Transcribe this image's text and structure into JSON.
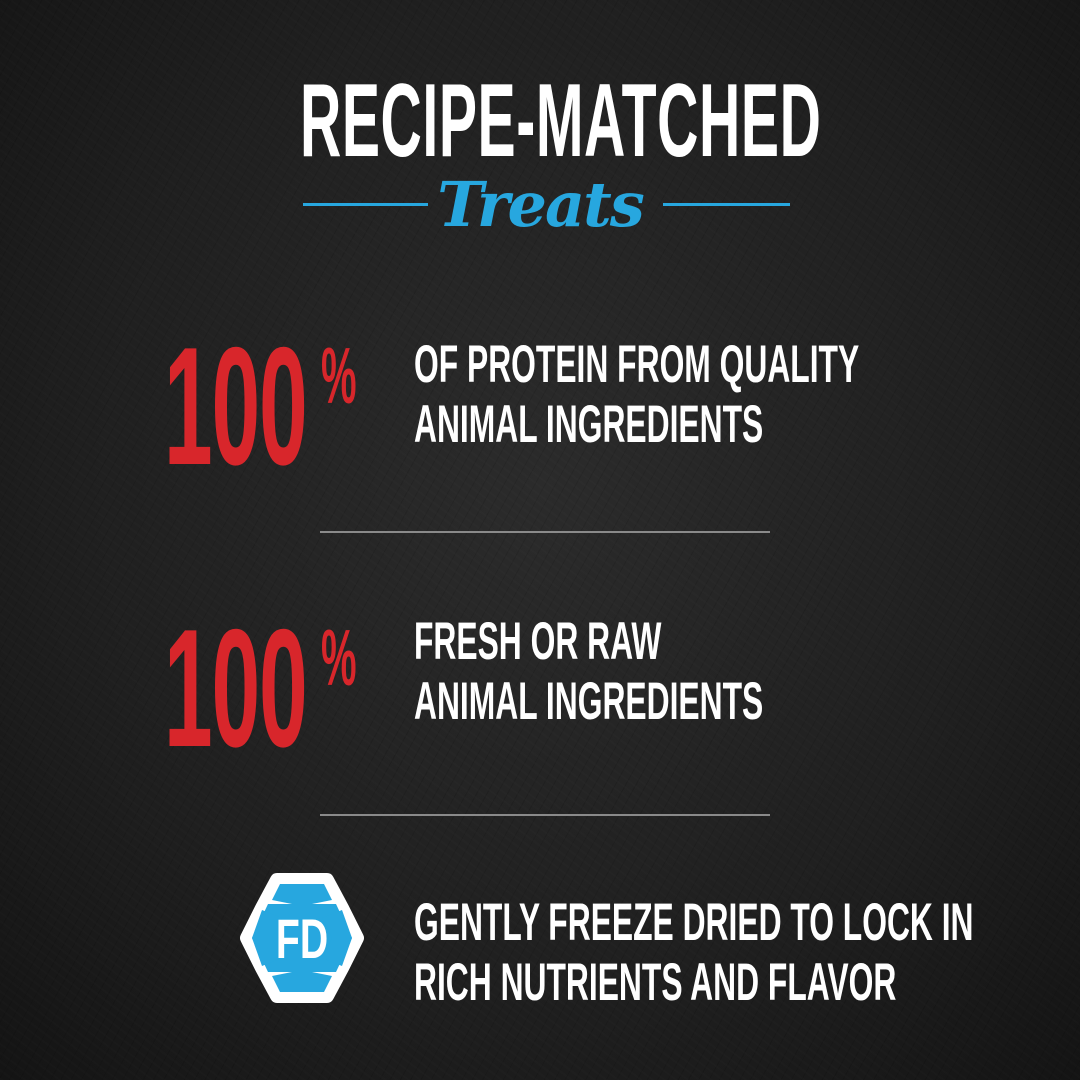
{
  "header": {
    "title": "RECIPE-MATCHED",
    "subtitle": "Treats"
  },
  "features": [
    {
      "number": "100",
      "unit": "%",
      "line1": "OF PROTEIN FROM QUALITY",
      "line2": "ANIMAL INGREDIENTS"
    },
    {
      "number": "100",
      "unit": "%",
      "line1": "FRESH OR RAW",
      "line2": "ANIMAL INGREDIENTS"
    },
    {
      "badge": "FD",
      "line1": "GENTLY FREEZE DRIED TO LOCK IN",
      "line2": "RICH NUTRIENTS AND FLAVOR"
    }
  ],
  "colors": {
    "accent_blue": "#27a7df",
    "accent_red": "#d8262b",
    "background": "#1f1f1f"
  }
}
